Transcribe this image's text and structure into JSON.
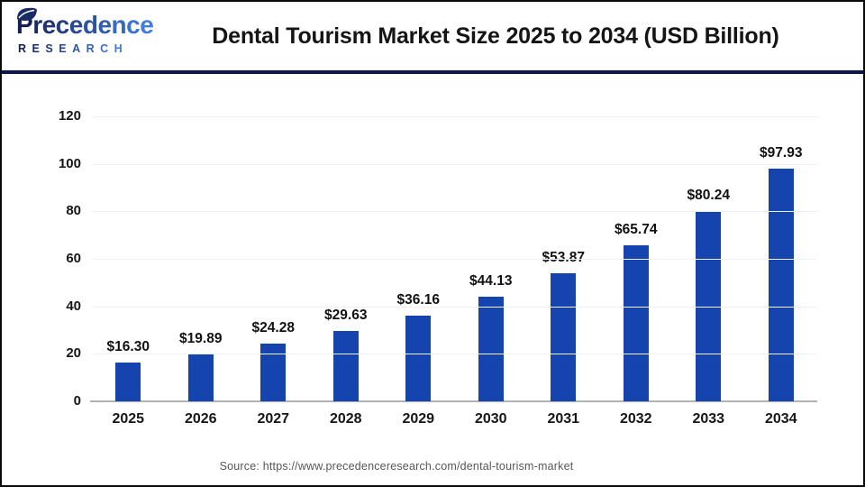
{
  "header": {
    "logo": {
      "brand_top": "Precedence",
      "brand_bottom": "RESEARCH"
    },
    "title": "Dental Tourism Market Size 2025 to 2034 (USD Billion)"
  },
  "chart_data": {
    "type": "bar",
    "title": "Dental Tourism Market Size 2025 to 2034 (USD Billion)",
    "categories": [
      "2025",
      "2026",
      "2027",
      "2028",
      "2029",
      "2030",
      "2031",
      "2032",
      "2033",
      "2034"
    ],
    "values": [
      16.3,
      19.89,
      24.28,
      29.63,
      36.16,
      44.13,
      53.87,
      65.74,
      80.24,
      97.93
    ],
    "value_labels": [
      "$16.30",
      "$19.89",
      "$24.28",
      "$29.63",
      "$36.16",
      "$44.13",
      "$53.87",
      "$65.74",
      "$80.24",
      "$97.93"
    ],
    "xlabel": "",
    "ylabel": "",
    "y_ticks": [
      0,
      20,
      40,
      60,
      80,
      100,
      120
    ],
    "ylim": [
      0,
      120
    ],
    "grid": true,
    "legend_position": "none",
    "bar_color": "#1544af"
  },
  "footer": {
    "source": "Source: https://www.precedenceresearch.com/dental-tourism-market"
  },
  "colors": {
    "bar": "#1544af",
    "divider_navy": "#0c164a",
    "gridline": "#f0f0f0",
    "baseline": "#b3b3b5",
    "text": "#161616",
    "source_text": "#57575a",
    "logo_gradient_start": "#151f55",
    "logo_gradient_end": "#3f7ee0"
  }
}
